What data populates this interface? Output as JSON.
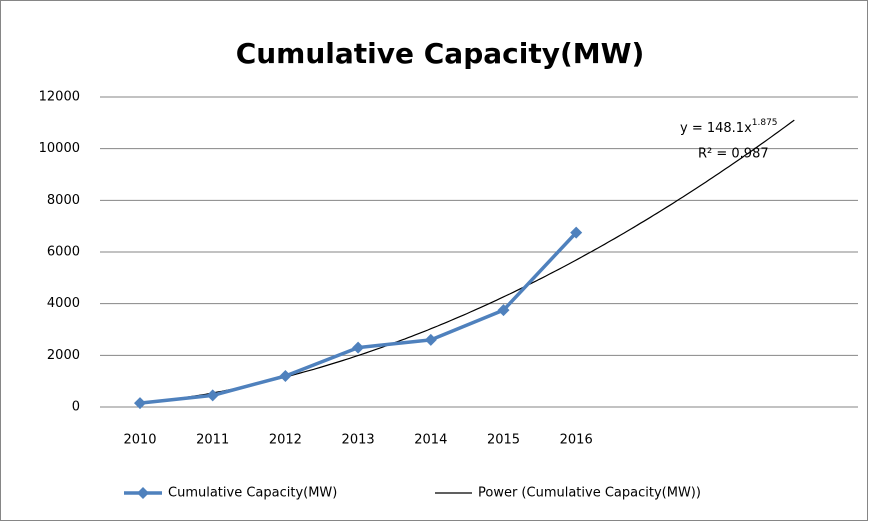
{
  "chart_data": {
    "type": "line",
    "title": "Cumulative Capacity(MW)",
    "categories": [
      "2010",
      "2011",
      "2012",
      "2013",
      "2014",
      "2015",
      "2016"
    ],
    "series": [
      {
        "name": "Cumulative Capacity(MW)",
        "color": "#4f81bd",
        "values": [
          150,
          450,
          1200,
          2300,
          2600,
          3750,
          6750
        ]
      }
    ],
    "trendline": {
      "name": "Power (Cumulative Capacity(MW))",
      "type": "power",
      "color": "#000000",
      "coefficient": 148.1,
      "exponent": 1.875,
      "forecast_forward": 3,
      "equation_label": "y = 148.1x",
      "exponent_label": "1.875",
      "r_squared_label": "R² = 0.987"
    },
    "ylim": [
      0,
      12000
    ],
    "yticks": [
      0,
      2000,
      4000,
      6000,
      8000,
      10000,
      12000
    ],
    "grid": true,
    "legend": "bottom"
  }
}
